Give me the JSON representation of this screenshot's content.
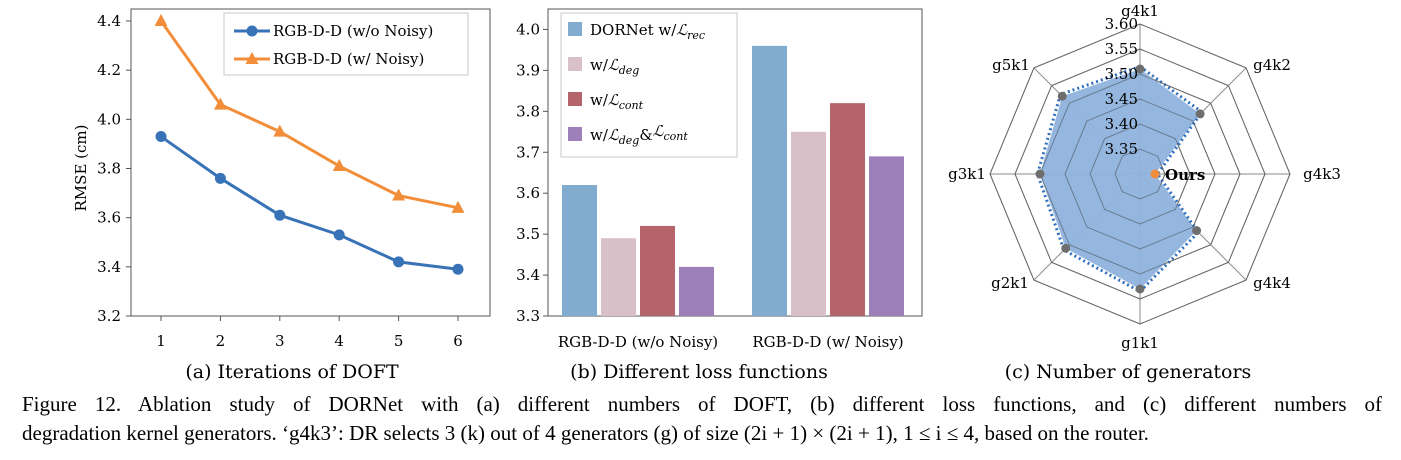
{
  "chart_data": [
    {
      "type": "line",
      "subtitle": "(a) Iterations of DOFT",
      "ylabel": "RMSE (cm)",
      "xlabel": "",
      "x": [
        1,
        2,
        3,
        4,
        5,
        6
      ],
      "x_ticks": [
        "1",
        "2",
        "3",
        "4",
        "5",
        "6"
      ],
      "ylim": [
        3.2,
        4.4
      ],
      "y_ticks": [
        "3.2",
        "3.4",
        "3.6",
        "3.8",
        "4.0",
        "4.2",
        "4.4"
      ],
      "grid": false,
      "legend_position": "top-right",
      "series": [
        {
          "name": "RGB-D-D (w/o Noisy)",
          "values": [
            3.93,
            3.76,
            3.61,
            3.53,
            3.42,
            3.39
          ],
          "color": "#3873b8",
          "marker": "circle"
        },
        {
          "name": "RGB-D-D (w/ Noisy)",
          "values": [
            4.4,
            4.06,
            3.95,
            3.81,
            3.69,
            3.64
          ],
          "color": "#f28e3a",
          "marker": "triangle"
        }
      ]
    },
    {
      "type": "bar",
      "subtitle": "(b) Different loss functions",
      "categories": [
        "RGB-D-D (w/o Noisy)",
        "RGB-D-D (w/ Noisy)"
      ],
      "ylim": [
        3.3,
        4.05
      ],
      "y_ticks": [
        "3.3",
        "3.4",
        "3.5",
        "3.6",
        "3.7",
        "3.8",
        "3.9",
        "4.0"
      ],
      "grid": false,
      "legend_position": "top-left",
      "series": [
        {
          "name": "DORNet w/ℒ_rec",
          "legend": {
            "prefix": "DORNet w/",
            "sub": "rec"
          },
          "values": [
            3.62,
            3.96
          ],
          "color": "#82accf"
        },
        {
          "name": "w/ℒ_deg",
          "legend": {
            "prefix": "w/",
            "sub": "deg"
          },
          "values": [
            3.49,
            3.75
          ],
          "color": "#d8bfc8"
        },
        {
          "name": "w/ℒ_cont",
          "legend": {
            "prefix": "w/",
            "sub": "cont"
          },
          "values": [
            3.52,
            3.82
          ],
          "color": "#b5646b"
        },
        {
          "name": "w/ℒ_deg&ℒ_cont",
          "legend": {
            "prefix": "w/",
            "sub": "deg",
            "joiner": "&",
            "sub2": "cont"
          },
          "values": [
            3.42,
            3.69
          ],
          "color": "#9d80ba"
        }
      ]
    },
    {
      "type": "radar",
      "subtitle": "(c) Number of generators",
      "axes": [
        "g4k1",
        "g4k2",
        "g4k3",
        "g4k4",
        "g1k1",
        "g2k1",
        "g3k1",
        "g5k1"
      ],
      "rlim": [
        3.3,
        3.6
      ],
      "r_ticks": [
        "3.35",
        "3.40",
        "3.45",
        "3.50",
        "3.55",
        "3.60"
      ],
      "series": [
        {
          "name": "generators",
          "values": [
            3.51,
            3.47,
            3.33,
            3.46,
            3.53,
            3.51,
            3.5,
            3.52
          ],
          "fill": "#8fb3dd",
          "dots": "#6e6e6e"
        },
        {
          "name": "dotted outline",
          "values": [
            3.515,
            3.475,
            3.335,
            3.465,
            3.535,
            3.515,
            3.505,
            3.525
          ],
          "color": "#2f6fbd",
          "style": "dotted"
        }
      ],
      "highlight": {
        "label": "Ours",
        "axis": "g4k3",
        "value": 3.33,
        "color": "#f28e3a"
      }
    }
  ],
  "caption": {
    "line1": "Figure 12.  Ablation study of DORNet with (a) different numbers of DOFT, (b) different loss functions, and (c) different numbers of",
    "line2_a": "degradation kernel generators. ‘g4k3’: DR selects 3 (k) out of 4 generators (g) of size ",
    "line2_math": "(2i + 1) × (2i + 1), 1 ≤ i ≤ 4",
    "line2_b": ", based on the router."
  }
}
